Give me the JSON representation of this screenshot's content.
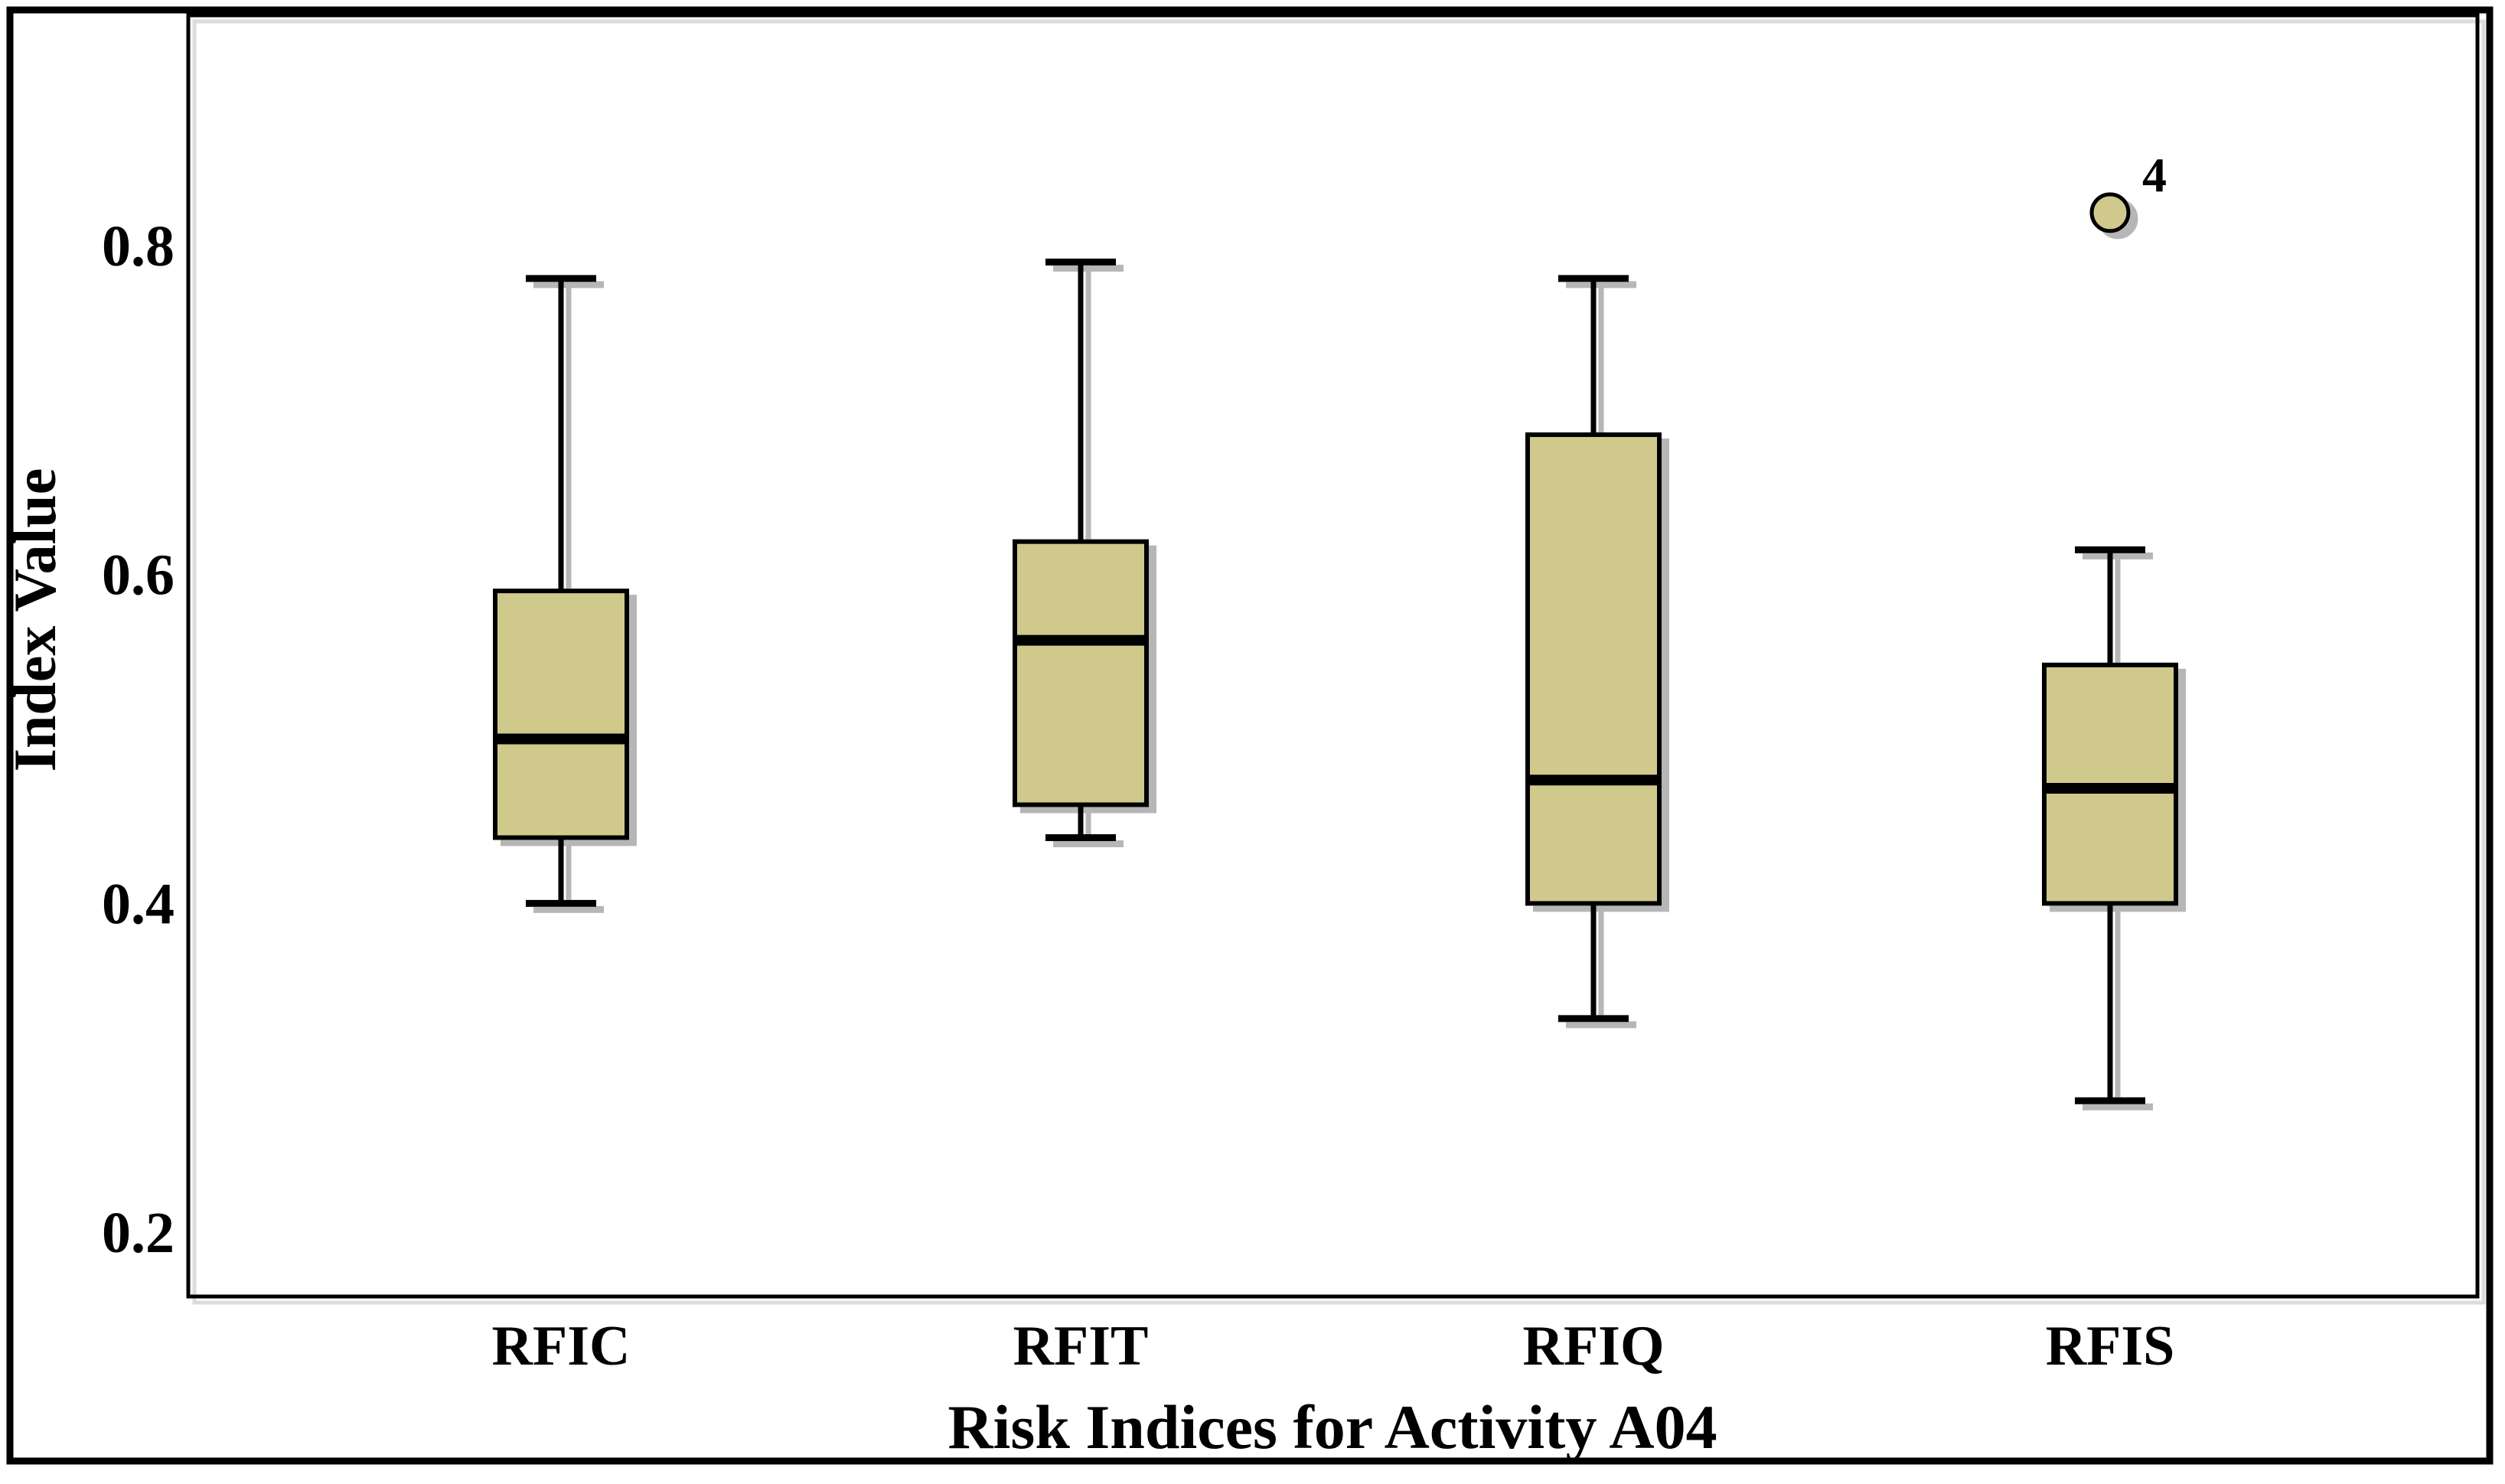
{
  "figure": {
    "background": "#ffffff",
    "outer_border_color": "#000000"
  },
  "chart_data": {
    "type": "boxplot",
    "title": "",
    "xlabel": "Risk Indices for Activity A04",
    "ylabel": "Index Value",
    "categories": [
      "RFIC",
      "RFIT",
      "RFIQ",
      "RFIS"
    ],
    "series": [
      {
        "name": "RFIC",
        "whisker_low": 0.4,
        "q1": 0.44,
        "median": 0.5,
        "q3": 0.59,
        "whisker_high": 0.78,
        "outliers": []
      },
      {
        "name": "RFIT",
        "whisker_low": 0.44,
        "q1": 0.46,
        "median": 0.56,
        "q3": 0.62,
        "whisker_high": 0.79,
        "outliers": []
      },
      {
        "name": "RFIQ",
        "whisker_low": 0.33,
        "q1": 0.4,
        "median": 0.475,
        "q3": 0.685,
        "whisker_high": 0.78,
        "outliers": []
      },
      {
        "name": "RFIS",
        "whisker_low": 0.28,
        "q1": 0.4,
        "median": 0.47,
        "q3": 0.545,
        "whisker_high": 0.615,
        "outliers": [
          {
            "value": 0.82,
            "label": "4"
          }
        ]
      }
    ],
    "yticks": {
      "values": [
        0.2,
        0.4,
        0.6,
        0.8
      ],
      "labels": [
        "0.2",
        "0.4",
        "0.6",
        "0.8"
      ]
    },
    "ylim": [
      0.161,
      0.94
    ],
    "grid": "horizontal",
    "legend": "none",
    "colors": {
      "box_fill": "#cfca8c",
      "box_stroke": "#000000",
      "median": "#000000",
      "gridline": "#b5b5b5",
      "shadow": "#9e9e9e",
      "grid_shadow": "#dcdcdc",
      "text": "#000000"
    }
  }
}
